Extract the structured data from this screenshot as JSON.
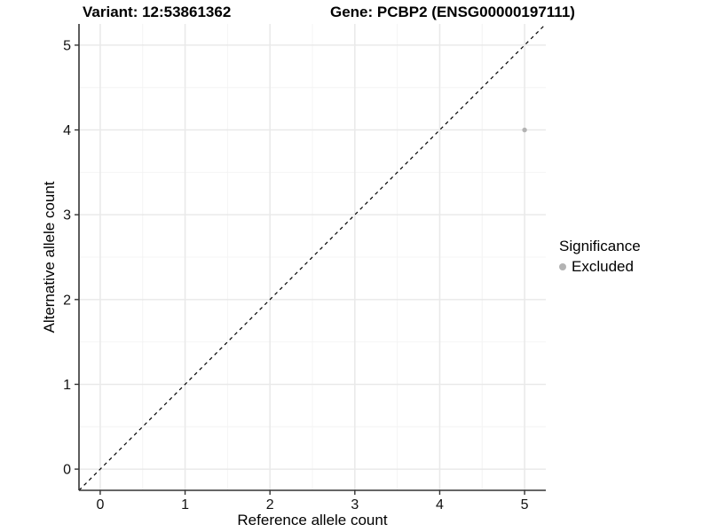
{
  "chart_data": {
    "type": "scatter",
    "title_left": "Variant: 12:53861362",
    "title_right": "Gene: PCBP2 (ENSG00000197111)",
    "xlabel": "Reference allele count",
    "ylabel": "Alternative allele count",
    "xlim": [
      -0.25,
      5.25
    ],
    "ylim": [
      -0.25,
      5.25
    ],
    "xticks": [
      0,
      1,
      2,
      3,
      4,
      5
    ],
    "yticks": [
      0,
      1,
      2,
      3,
      4,
      5
    ],
    "minor_breaks": [
      0.5,
      1.5,
      2.5,
      3.5,
      4.5
    ],
    "grid": {
      "major_color": "#e9e9e9",
      "minor_color": "#f4f4f4",
      "show": true
    },
    "axis_color": "#333333",
    "tick_label_color": "#111111",
    "identity_line": {
      "style": "dashed",
      "from": [
        -0.25,
        -0.25
      ],
      "to": [
        5.25,
        5.25
      ],
      "color": "#000000"
    },
    "points": [
      {
        "x": 5,
        "y": 4,
        "series": "Excluded",
        "color": "#b3b3b3",
        "radius": 2.7
      }
    ],
    "legend": {
      "title": "Significance",
      "position": "right",
      "entries": [
        {
          "label": "Excluded",
          "marker": "circle",
          "color": "#b3b3b3"
        }
      ]
    }
  }
}
